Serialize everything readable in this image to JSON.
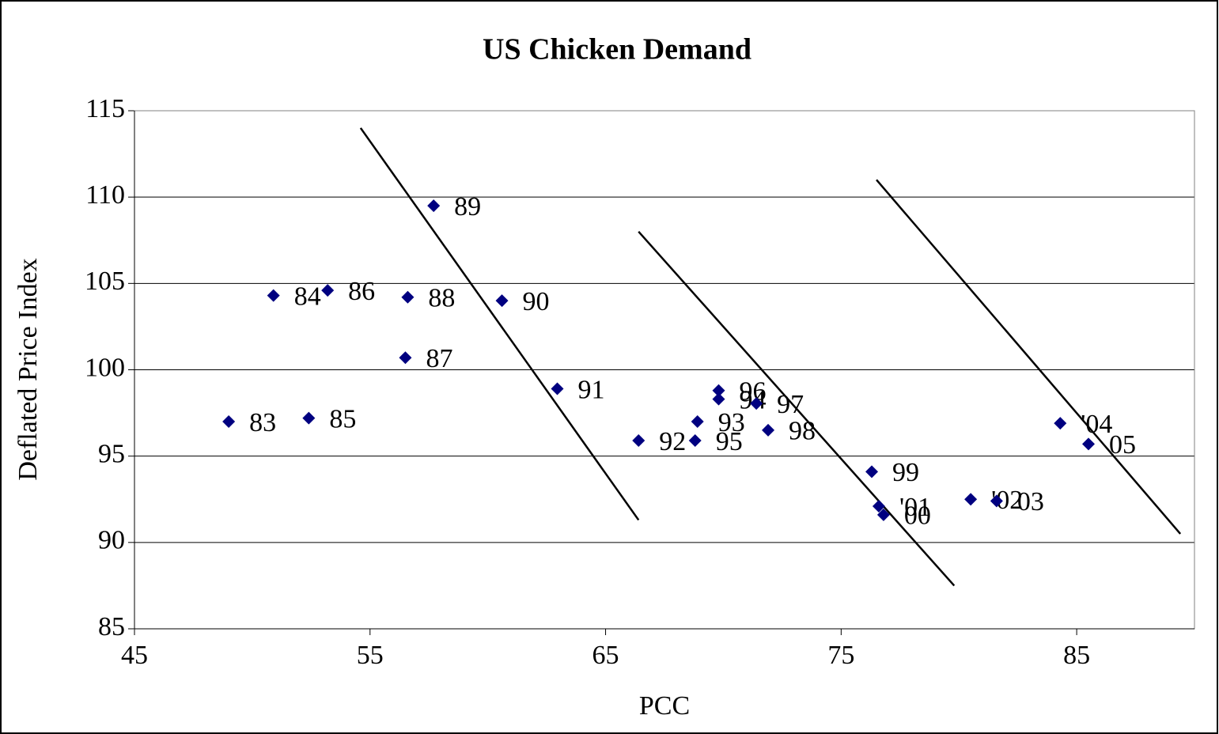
{
  "chart_data": {
    "type": "scatter",
    "title": "US Chicken Demand",
    "x_label": "PCC",
    "y_label": "Deflated Price Index",
    "color": "#000080",
    "grid": true,
    "xlim": [
      45,
      90
    ],
    "xticks": [
      45,
      55,
      65,
      75,
      85
    ],
    "ylim": [
      85,
      115
    ],
    "yticks": [
      85,
      90,
      95,
      100,
      105,
      110,
      115
    ],
    "labels": [
      "83",
      "84",
      "85",
      "86",
      "87",
      "88",
      "89",
      "90",
      "91",
      "92",
      "93",
      "94",
      "95",
      "96",
      "97",
      "98",
      "99",
      "00",
      "'01",
      "'02",
      "03",
      "'04",
      "05"
    ],
    "x": [
      49.0,
      50.9,
      52.4,
      53.2,
      56.5,
      56.6,
      57.7,
      60.6,
      62.95,
      66.4,
      68.9,
      69.8,
      68.8,
      69.8,
      71.4,
      71.9,
      76.3,
      76.8,
      76.6,
      80.5,
      81.6,
      84.3,
      85.5
    ],
    "values": [
      97.0,
      104.3,
      97.2,
      104.6,
      100.7,
      104.2,
      109.5,
      104.0,
      98.9,
      95.9,
      97.0,
      98.3,
      95.9,
      98.8,
      98.05,
      96.5,
      94.1,
      91.6,
      92.1,
      92.5,
      92.4,
      96.9,
      95.7
    ],
    "lines": [
      {
        "x": [
          54.6,
          66.4
        ],
        "y": [
          114.0,
          91.3
        ]
      },
      {
        "x": [
          66.4,
          79.8
        ],
        "y": [
          108.0,
          87.5
        ]
      },
      {
        "x": [
          76.5,
          89.4
        ],
        "y": [
          111.0,
          90.5
        ]
      }
    ]
  }
}
